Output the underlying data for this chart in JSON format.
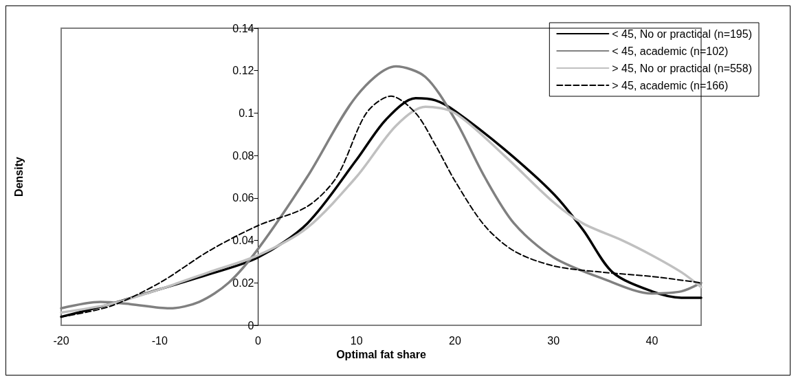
{
  "chart_data": {
    "type": "line",
    "xlabel": "Optimal fat share",
    "ylabel": "Density",
    "xlim": [
      -20,
      45
    ],
    "xticks": [
      -20,
      -10,
      0,
      10,
      20,
      30,
      40
    ],
    "ylim": [
      0,
      0.14
    ],
    "yticks": [
      0,
      0.02,
      0.04,
      0.06,
      0.08,
      0.1,
      0.12,
      0.14
    ],
    "grid": false,
    "legend": "top right",
    "marker": "none",
    "series": [
      {
        "name": "< 45, No or practical (n=195)",
        "color": "#000000",
        "line_style": "solid",
        "x": [
          -20,
          -15,
          -10,
          -5,
          0,
          5,
          10,
          13,
          16,
          18,
          20,
          25,
          30,
          33,
          36,
          40,
          43,
          45
        ],
        "values": [
          0.004,
          0.01,
          0.017,
          0.024,
          0.032,
          0.048,
          0.078,
          0.097,
          0.107,
          0.106,
          0.101,
          0.083,
          0.062,
          0.045,
          0.025,
          0.016,
          0.013,
          0.013
        ]
      },
      {
        "name": "< 45, academic (n=102)",
        "color": "#808080",
        "line_style": "solid",
        "x": [
          -20,
          -16,
          -13,
          -9,
          -6,
          -3,
          0,
          5,
          10,
          14,
          17,
          20,
          23,
          26,
          30,
          35,
          40,
          43,
          45
        ],
        "values": [
          0.008,
          0.011,
          0.01,
          0.008,
          0.011,
          0.02,
          0.036,
          0.07,
          0.108,
          0.122,
          0.117,
          0.097,
          0.07,
          0.048,
          0.032,
          0.022,
          0.015,
          0.016,
          0.02
        ]
      },
      {
        "name": "> 45, No or practical (n=558)",
        "color": "#c0c0c0",
        "line_style": "solid",
        "x": [
          -20,
          -15,
          -10,
          -5,
          0,
          5,
          10,
          14,
          17,
          20,
          25,
          30,
          33,
          37,
          40,
          43,
          45
        ],
        "values": [
          0.006,
          0.01,
          0.017,
          0.025,
          0.033,
          0.046,
          0.07,
          0.094,
          0.103,
          0.1,
          0.08,
          0.058,
          0.048,
          0.04,
          0.033,
          0.025,
          0.018
        ]
      },
      {
        "name": "> 45, academic (n=166)",
        "color": "#000000",
        "line_style": "dashed",
        "x": [
          -20,
          -15,
          -10,
          -5,
          0,
          5,
          8,
          11,
          13.5,
          16,
          18,
          20,
          23,
          26,
          30,
          35,
          40,
          45
        ],
        "values": [
          0.004,
          0.009,
          0.02,
          0.035,
          0.047,
          0.056,
          0.07,
          0.1,
          0.108,
          0.1,
          0.085,
          0.068,
          0.047,
          0.035,
          0.028,
          0.025,
          0.023,
          0.02
        ]
      }
    ]
  }
}
